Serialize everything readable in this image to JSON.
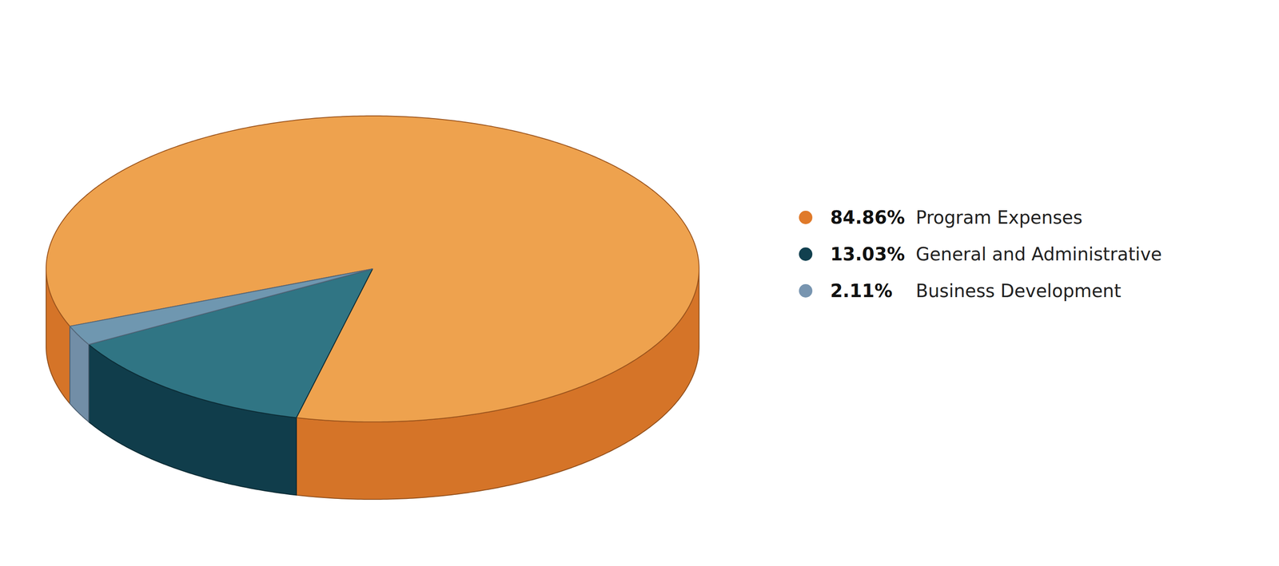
{
  "chart_data": {
    "type": "pie",
    "categories": [
      "Program Expenses",
      "General and Administrative",
      "Business Development"
    ],
    "values": [
      84.86,
      13.03,
      2.11
    ],
    "value_labels": [
      "84.86%",
      "13.03%",
      "2.11%"
    ],
    "colors": [
      "#e07a2a",
      "#11404f",
      "#7895b0"
    ],
    "legend": "right"
  }
}
